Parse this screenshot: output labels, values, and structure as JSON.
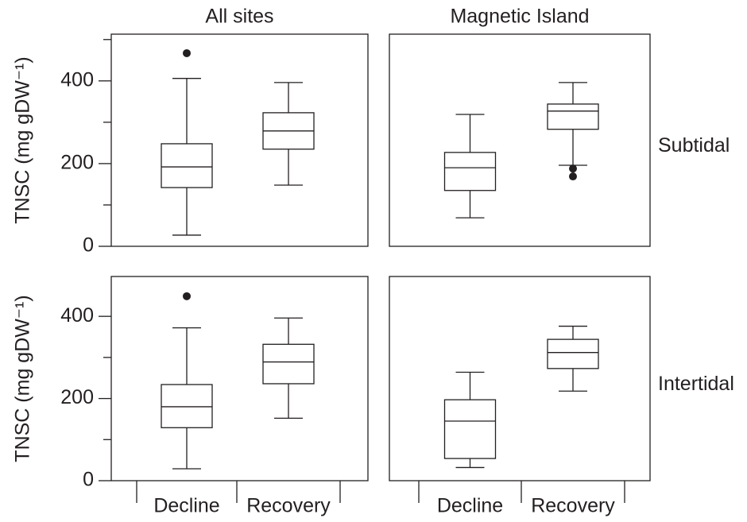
{
  "chart_data": [
    {
      "type": "box",
      "title": "All sites",
      "ylabel": "TNSC (mg gDW⁻¹)",
      "ylim": [
        0,
        513
      ],
      "yticks": [
        0,
        200,
        400
      ],
      "yminorticks": [
        100,
        300,
        500
      ],
      "boxes": [
        {
          "whislo": 27,
          "q1": 142,
          "med": 192,
          "q3": 248,
          "whishi": 406,
          "fliers": [
            467
          ]
        },
        {
          "whislo": 148,
          "q1": 235,
          "med": 279,
          "q3": 323,
          "whishi": 396
        }
      ]
    },
    {
      "type": "box",
      "title": "Magnetic Island",
      "row_label": "Subtidal",
      "ylim": [
        0,
        513
      ],
      "boxes": [
        {
          "whislo": 69,
          "q1": 135,
          "med": 190,
          "q3": 227,
          "whishi": 319
        },
        {
          "whislo": 196,
          "q1": 283,
          "med": 327,
          "q3": 344,
          "whishi": 396,
          "fliers": [
            188,
            169
          ]
        }
      ]
    },
    {
      "type": "box",
      "ylabel": "TNSC (mg gDW⁻¹)",
      "ylim": [
        0,
        497
      ],
      "yticks": [
        0,
        200,
        400
      ],
      "yminorticks": [
        100,
        300
      ],
      "categories": [
        "Decline",
        "Recovery"
      ],
      "boxes": [
        {
          "whislo": 29,
          "q1": 129,
          "med": 180,
          "q3": 234,
          "whishi": 372,
          "fliers": [
            449
          ]
        },
        {
          "whislo": 152,
          "q1": 236,
          "med": 289,
          "q3": 332,
          "whishi": 396
        }
      ]
    },
    {
      "type": "box",
      "row_label": "Intertidal",
      "ylim": [
        0,
        497
      ],
      "categories": [
        "Decline",
        "Recovery"
      ],
      "boxes": [
        {
          "whislo": 32,
          "q1": 54,
          "med": 145,
          "q3": 197,
          "whishi": 264
        },
        {
          "whislo": 218,
          "q1": 273,
          "med": 312,
          "q3": 344,
          "whishi": 376
        }
      ]
    }
  ]
}
